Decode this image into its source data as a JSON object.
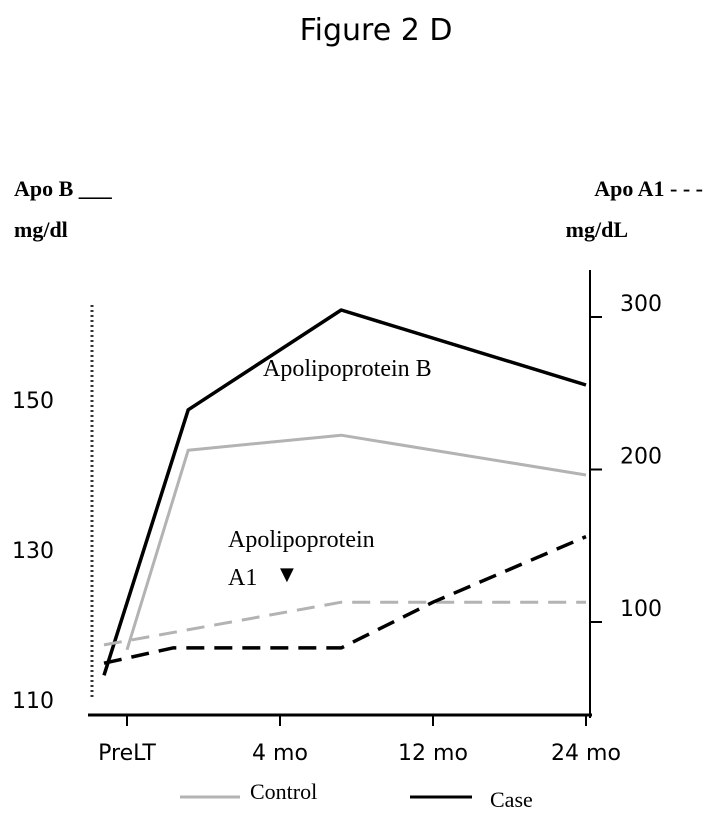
{
  "chart_data": {
    "type": "line",
    "title": "Figure 2 D",
    "left_axis_label": "Apo B ___",
    "left_axis_unit": "mg/dl",
    "right_axis_label": "Apo A1 - - -",
    "right_axis_unit": "mg/dL",
    "categories": [
      "PreLT",
      "4 mo",
      "12 mo",
      "24 mo"
    ],
    "left_axis": {
      "ticks": [
        110,
        130,
        150
      ],
      "range": [
        110,
        150
      ]
    },
    "right_axis": {
      "ticks": [
        100,
        200,
        300
      ],
      "range": [
        100,
        300
      ]
    },
    "annotations": {
      "apob": "Apolipoprotein  B",
      "apoa1_line1": "Apolipoprotein",
      "apoa1_line2": "A1",
      "apoa1_marker": "▼"
    },
    "series": [
      {
        "name": "Control",
        "measure": "Apo B",
        "axis": "left",
        "color": "#b3b3b3",
        "dashed": false,
        "points": [
          {
            "x": 0.0,
            "y": 116.7
          },
          {
            "x": 0.4,
            "y": 143.3
          },
          {
            "x": 1.4,
            "y": 145.3
          },
          {
            "x": 3.0,
            "y": 140.0
          }
        ]
      },
      {
        "name": "Case",
        "measure": "Apo B",
        "axis": "left",
        "color": "#000000",
        "dashed": false,
        "points": [
          {
            "x": -0.15,
            "y": 113.3
          },
          {
            "x": 0.4,
            "y": 148.7
          },
          {
            "x": 1.4,
            "y": 162.0
          },
          {
            "x": 3.0,
            "y": 152.0
          }
        ]
      },
      {
        "name": "Control",
        "measure": "Apo A1",
        "axis": "right",
        "color": "#b3b3b3",
        "dashed": true,
        "points": [
          {
            "x": -0.15,
            "y": 85
          },
          {
            "x": 1.4,
            "y": 113
          },
          {
            "x": 3.0,
            "y": 113
          }
        ]
      },
      {
        "name": "Case",
        "measure": "Apo A1",
        "axis": "right",
        "color": "#000000",
        "dashed": true,
        "points": [
          {
            "x": -0.15,
            "y": 73
          },
          {
            "x": 0.3,
            "y": 83
          },
          {
            "x": 1.4,
            "y": 83
          },
          {
            "x": 2.0,
            "y": 113
          },
          {
            "x": 3.0,
            "y": 156
          }
        ]
      }
    ],
    "legend": [
      {
        "label": "Control",
        "color": "#b3b3b3"
      },
      {
        "label": "Case",
        "color": "#000000"
      }
    ],
    "legend_position": "bottom"
  }
}
